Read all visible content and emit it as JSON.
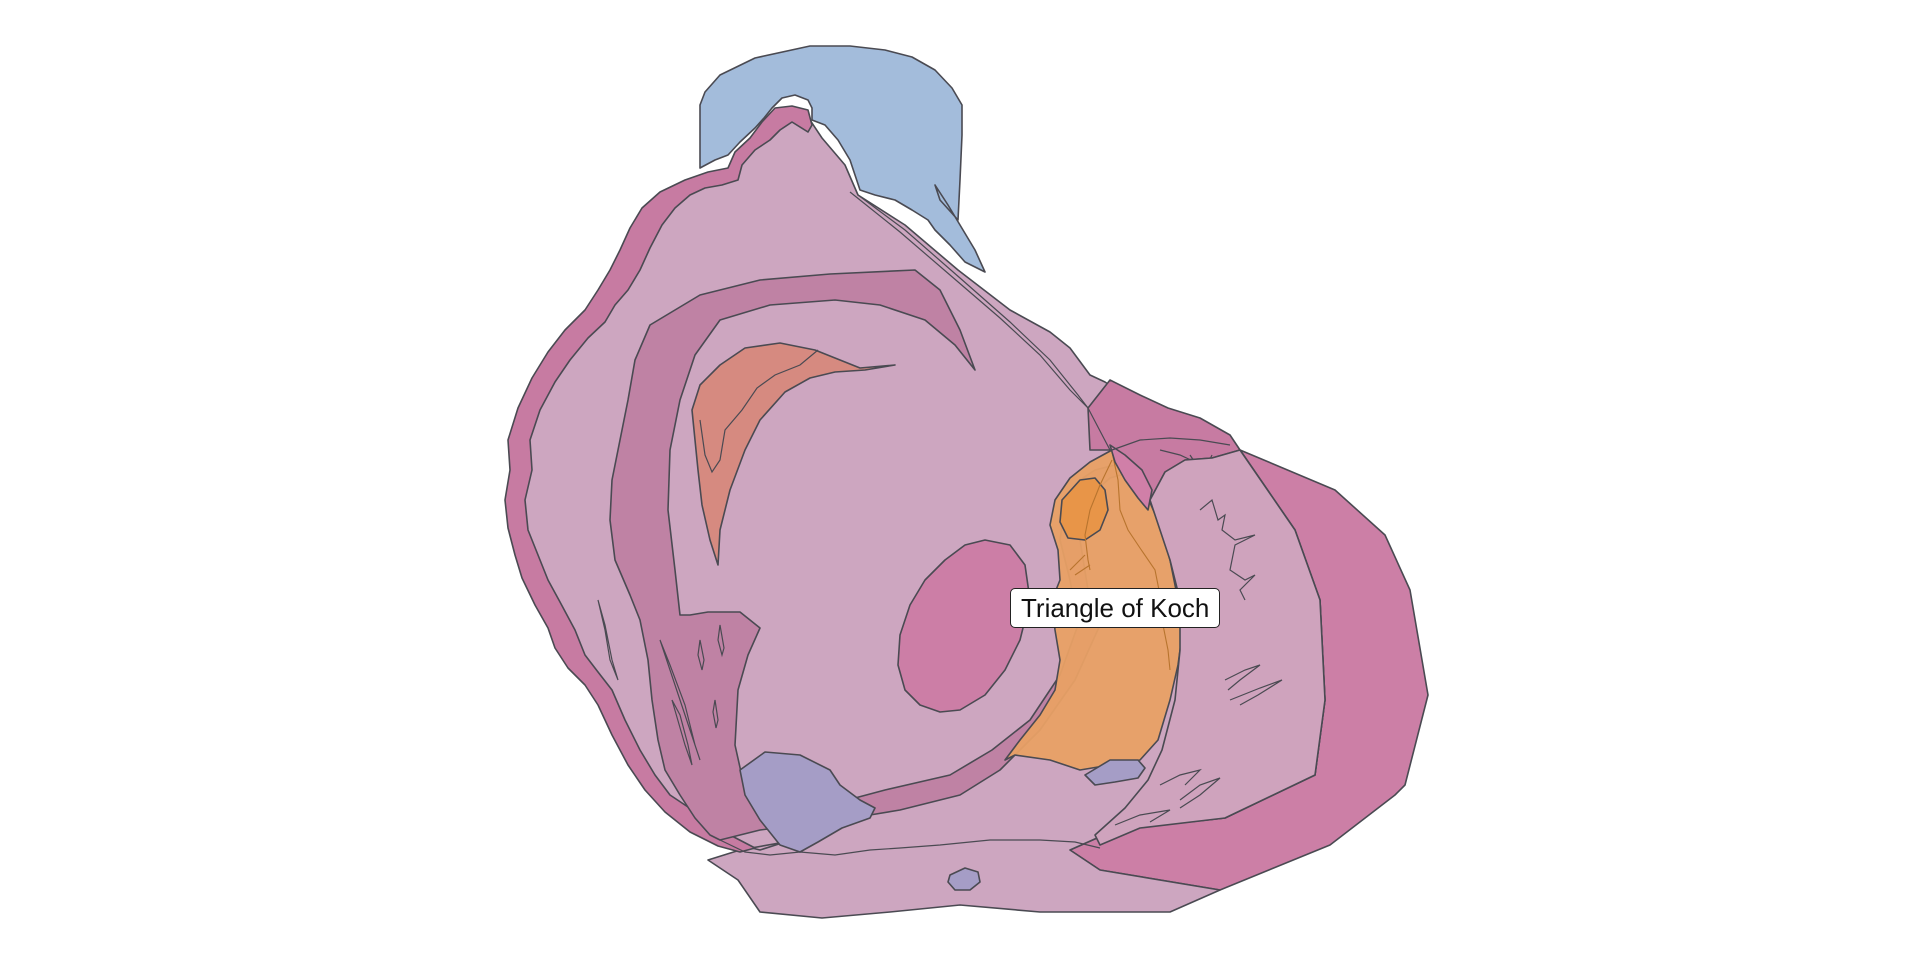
{
  "label": {
    "text": "Triangle of Koch"
  },
  "palette": {
    "outline": "#4a4a52",
    "atrium_wall": "#cda6c0",
    "atrium_rim": "#c77ba2",
    "pectinate_band": "#bf82a4",
    "crista_red": "#d68a80",
    "fossa_ovalis": "#cc7ea6",
    "vena_cava": "#a3bcdb",
    "koch_triangle": "#e8a065",
    "koch_triangle_dark": "#e89548",
    "coronary_sinus": "#a59dc6",
    "ventricle": "#cc7fa6",
    "label_bg": "#ffffff",
    "label_border": "#222222"
  }
}
